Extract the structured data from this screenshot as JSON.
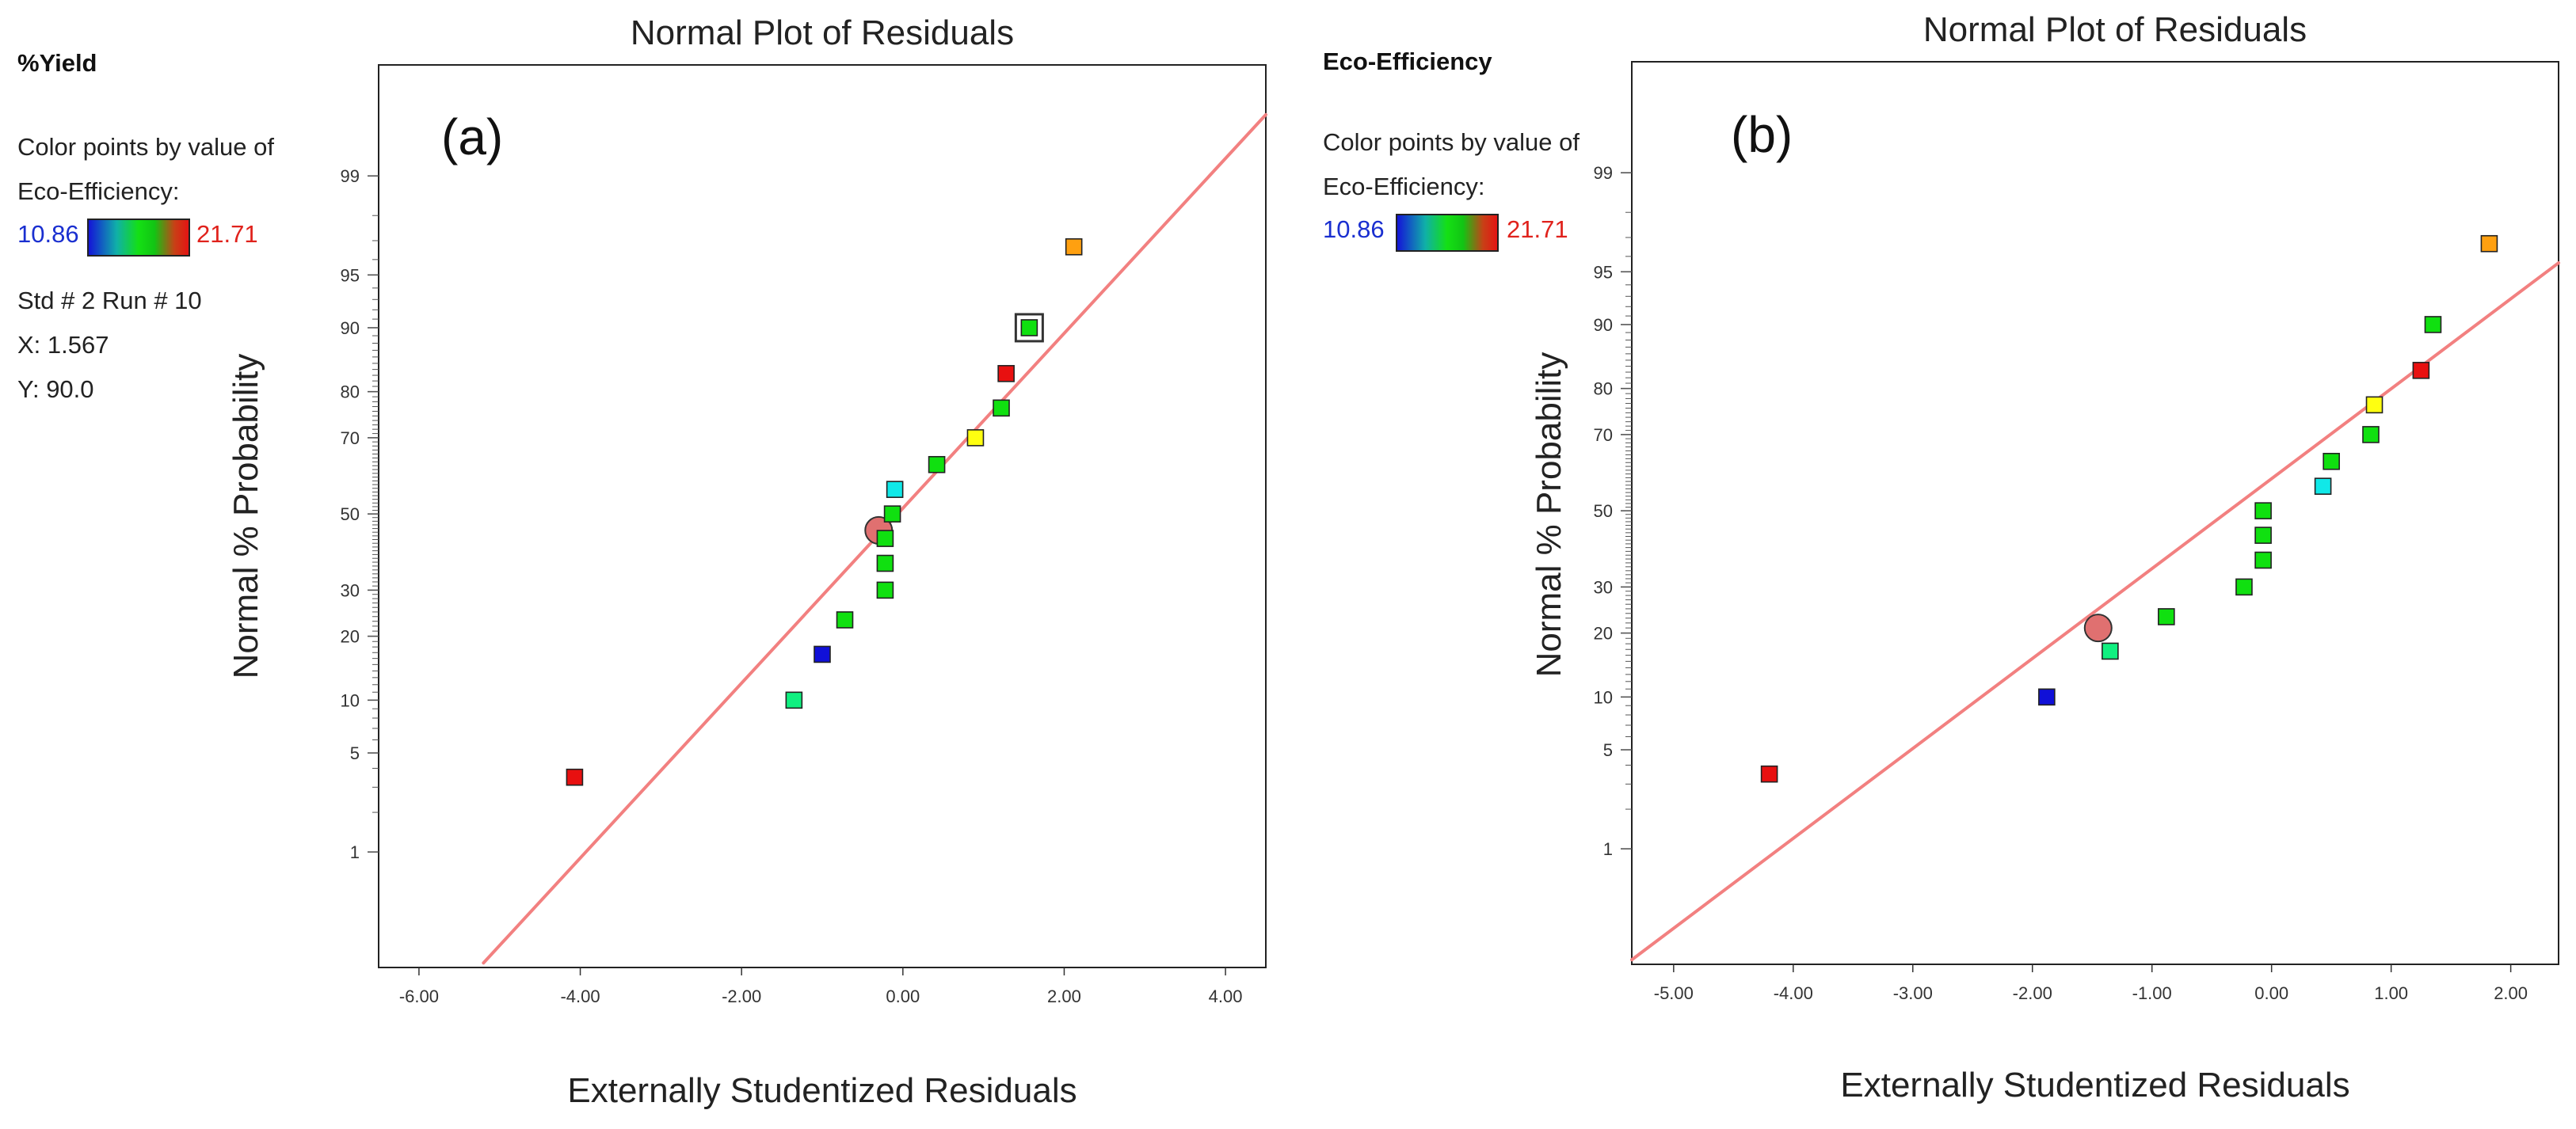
{
  "panels": [
    {
      "response_name": "%Yield",
      "color_by_line1": "Color points by value of",
      "color_by_line2": "Eco-Efficiency:",
      "color_low": "10.86",
      "color_high": "21.71",
      "selected_point": {
        "std_run": "Std # 2 Run # 10",
        "x_text": "X: 1.567",
        "y_text": "Y: 90.0"
      }
    },
    {
      "response_name": "Eco-Efficiency",
      "color_by_line1": "Color points by value of",
      "color_by_line2": "Eco-Efficiency:",
      "color_low": "10.86",
      "color_high": "21.71"
    }
  ],
  "colors": {
    "fit_line": "#f28080",
    "blue": "#1010d8",
    "green": "#10e010",
    "teal": "#10f080",
    "cyan": "#10e8e8",
    "yellow": "#ffff10",
    "orange": "#ffa010",
    "red": "#e81010",
    "centroid": "#e07070"
  },
  "chart_data": [
    {
      "type": "scatter",
      "title": "Normal Plot of Residuals",
      "panel_label": "(a)",
      "xlabel": "Externally Studentized Residuals",
      "ylabel": "Normal % Probability",
      "xlim": [
        -6.5,
        4.5
      ],
      "x_ticks": [
        "-6.00",
        "-4.00",
        "-2.00",
        "0.00",
        "2.00",
        "4.00"
      ],
      "x_tick_values": [
        -6,
        -4,
        -2,
        0,
        2,
        4
      ],
      "y_scale": "normal-probability",
      "y_tick_labels": [
        "1",
        "5",
        "10",
        "20",
        "30",
        "50",
        "70",
        "80",
        "90",
        "95",
        "99"
      ],
      "y_tick_values": [
        1,
        5,
        10,
        20,
        30,
        50,
        70,
        80,
        90,
        95,
        99
      ],
      "ylim_percent": [
        0.09,
        99.9
      ],
      "fit_line": {
        "x": [
          -5.2,
          4.5
        ],
        "y": [
          0.1,
          99.7
        ]
      },
      "points": [
        {
          "x": -4.07,
          "y": 3.5,
          "color": "red"
        },
        {
          "x": -1.35,
          "y": 10.0,
          "color": "teal"
        },
        {
          "x": -1.0,
          "y": 16.7,
          "color": "blue"
        },
        {
          "x": -0.72,
          "y": 23.3,
          "color": "green"
        },
        {
          "x": -0.22,
          "y": 30.0,
          "color": "green"
        },
        {
          "x": -0.22,
          "y": 36.7,
          "color": "green"
        },
        {
          "x": -0.22,
          "y": 43.3,
          "color": "green"
        },
        {
          "x": -0.13,
          "y": 50.0,
          "color": "green"
        },
        {
          "x": -0.1,
          "y": 56.7,
          "color": "cyan"
        },
        {
          "x": 0.42,
          "y": 63.3,
          "color": "green"
        },
        {
          "x": 0.9,
          "y": 70.0,
          "color": "yellow"
        },
        {
          "x": 1.22,
          "y": 76.7,
          "color": "green"
        },
        {
          "x": 1.28,
          "y": 83.3,
          "color": "red"
        },
        {
          "x": 1.567,
          "y": 90.0,
          "color": "green",
          "selected": true
        },
        {
          "x": 2.12,
          "y": 96.7,
          "color": "orange"
        }
      ],
      "centroid": {
        "x": -0.3,
        "y": 45.5
      }
    },
    {
      "type": "scatter",
      "title": "Normal Plot of Residuals",
      "panel_label": "(b)",
      "xlabel": "Externally Studentized Residuals",
      "ylabel": "Normal % Probability",
      "xlim": [
        -5.35,
        2.4
      ],
      "x_ticks": [
        "-5.00",
        "-4.00",
        "-3.00",
        "-2.00",
        "-1.00",
        "0.00",
        "1.00",
        "2.00"
      ],
      "x_tick_values": [
        -5,
        -4,
        -3,
        -2,
        -1,
        0,
        1,
        2
      ],
      "y_scale": "normal-probability",
      "y_tick_labels": [
        "1",
        "5",
        "10",
        "20",
        "30",
        "50",
        "70",
        "80",
        "90",
        "95",
        "99"
      ],
      "y_tick_values": [
        1,
        5,
        10,
        20,
        30,
        50,
        70,
        80,
        90,
        95,
        99
      ],
      "ylim_percent": [
        0.09,
        99.9
      ],
      "fit_line": {
        "x": [
          -5.35,
          2.4
        ],
        "y": [
          0.1,
          95.6
        ]
      },
      "points": [
        {
          "x": -4.2,
          "y": 3.5,
          "color": "red"
        },
        {
          "x": -1.88,
          "y": 10.0,
          "color": "blue"
        },
        {
          "x": -1.35,
          "y": 16.7,
          "color": "teal"
        },
        {
          "x": -0.88,
          "y": 23.3,
          "color": "green"
        },
        {
          "x": -0.23,
          "y": 30.0,
          "color": "green"
        },
        {
          "x": -0.07,
          "y": 36.7,
          "color": "green"
        },
        {
          "x": -0.07,
          "y": 43.3,
          "color": "green"
        },
        {
          "x": -0.07,
          "y": 50.0,
          "color": "green"
        },
        {
          "x": 0.43,
          "y": 56.7,
          "color": "cyan"
        },
        {
          "x": 0.5,
          "y": 63.3,
          "color": "green"
        },
        {
          "x": 0.83,
          "y": 70.0,
          "color": "green"
        },
        {
          "x": 0.86,
          "y": 76.7,
          "color": "yellow"
        },
        {
          "x": 1.25,
          "y": 83.3,
          "color": "red"
        },
        {
          "x": 1.35,
          "y": 90.0,
          "color": "green"
        },
        {
          "x": 1.82,
          "y": 96.7,
          "color": "orange"
        }
      ],
      "centroid": {
        "x": -1.45,
        "y": 21.0
      }
    }
  ]
}
